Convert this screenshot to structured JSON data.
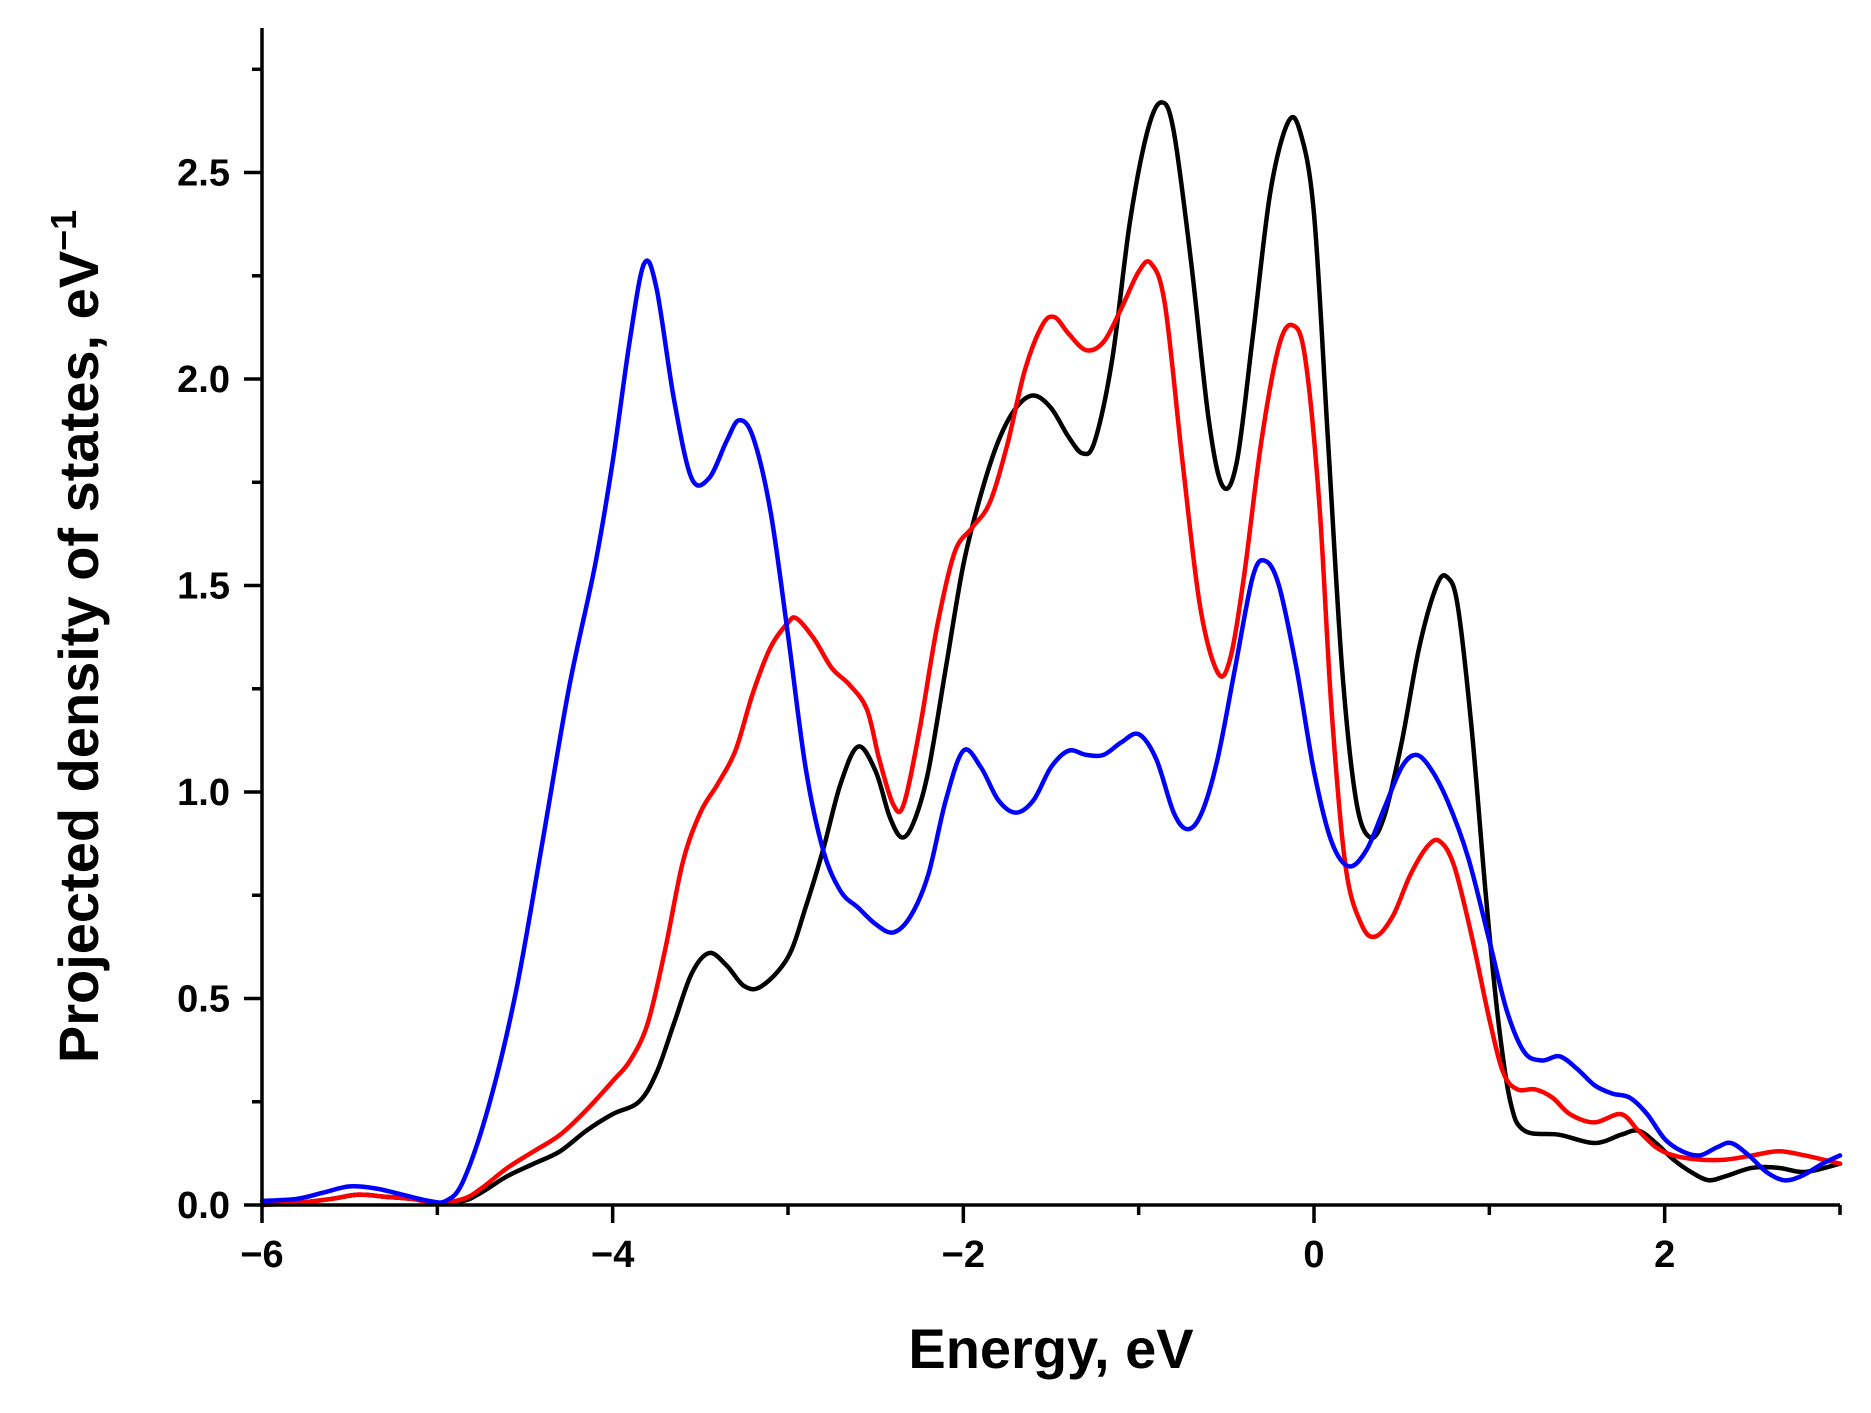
{
  "chart_data": {
    "type": "line",
    "title": "",
    "xlabel": "Energy, eV",
    "ylabel": "Projected density of states, eV",
    "ylabel_unit_exponent": "−1",
    "xlim": [
      -6,
      3
    ],
    "ylim": [
      0,
      2.85
    ],
    "x_ticks": [
      -6,
      -4,
      -2,
      0,
      2
    ],
    "x_tick_labels": [
      "−6",
      "−4",
      "−2",
      "0",
      "2"
    ],
    "y_ticks": [
      0.0,
      0.5,
      1.0,
      1.5,
      2.0,
      2.5
    ],
    "y_tick_labels": [
      "0.0",
      "0.5",
      "1.0",
      "1.5",
      "2.0",
      "2.5"
    ],
    "grid": false,
    "series": [
      {
        "name": "black",
        "color": "#000000",
        "points": [
          [
            -6,
            0
          ],
          [
            -5.8,
            0.005
          ],
          [
            -5.6,
            0.015
          ],
          [
            -5.45,
            0.025
          ],
          [
            -5.3,
            0.02
          ],
          [
            -5.15,
            0.015
          ],
          [
            -5.0,
            0.005
          ],
          [
            -4.85,
            0.01
          ],
          [
            -4.75,
            0.03
          ],
          [
            -4.6,
            0.07
          ],
          [
            -4.45,
            0.1
          ],
          [
            -4.3,
            0.13
          ],
          [
            -4.15,
            0.18
          ],
          [
            -4.0,
            0.22
          ],
          [
            -3.85,
            0.25
          ],
          [
            -3.75,
            0.32
          ],
          [
            -3.65,
            0.44
          ],
          [
            -3.55,
            0.56
          ],
          [
            -3.45,
            0.61
          ],
          [
            -3.35,
            0.58
          ],
          [
            -3.25,
            0.53
          ],
          [
            -3.15,
            0.53
          ],
          [
            -3.0,
            0.6
          ],
          [
            -2.9,
            0.72
          ],
          [
            -2.8,
            0.86
          ],
          [
            -2.7,
            1.02
          ],
          [
            -2.6,
            1.11
          ],
          [
            -2.5,
            1.05
          ],
          [
            -2.42,
            0.94
          ],
          [
            -2.35,
            0.89
          ],
          [
            -2.28,
            0.93
          ],
          [
            -2.2,
            1.05
          ],
          [
            -2.1,
            1.3
          ],
          [
            -2.0,
            1.55
          ],
          [
            -1.9,
            1.72
          ],
          [
            -1.8,
            1.85
          ],
          [
            -1.7,
            1.93
          ],
          [
            -1.6,
            1.96
          ],
          [
            -1.5,
            1.93
          ],
          [
            -1.4,
            1.86
          ],
          [
            -1.32,
            1.82
          ],
          [
            -1.25,
            1.85
          ],
          [
            -1.15,
            2.05
          ],
          [
            -1.05,
            2.38
          ],
          [
            -0.95,
            2.6
          ],
          [
            -0.87,
            2.67
          ],
          [
            -0.8,
            2.6
          ],
          [
            -0.7,
            2.28
          ],
          [
            -0.6,
            1.9
          ],
          [
            -0.52,
            1.74
          ],
          [
            -0.44,
            1.8
          ],
          [
            -0.35,
            2.1
          ],
          [
            -0.25,
            2.45
          ],
          [
            -0.15,
            2.62
          ],
          [
            -0.08,
            2.6
          ],
          [
            0.0,
            2.4
          ],
          [
            0.08,
            1.85
          ],
          [
            0.16,
            1.3
          ],
          [
            0.24,
            0.98
          ],
          [
            0.32,
            0.89
          ],
          [
            0.4,
            0.94
          ],
          [
            0.5,
            1.12
          ],
          [
            0.6,
            1.35
          ],
          [
            0.7,
            1.5
          ],
          [
            0.76,
            1.52
          ],
          [
            0.82,
            1.45
          ],
          [
            0.9,
            1.15
          ],
          [
            0.98,
            0.75
          ],
          [
            1.05,
            0.45
          ],
          [
            1.12,
            0.25
          ],
          [
            1.2,
            0.18
          ],
          [
            1.4,
            0.17
          ],
          [
            1.6,
            0.15
          ],
          [
            1.75,
            0.17
          ],
          [
            1.85,
            0.18
          ],
          [
            1.95,
            0.15
          ],
          [
            2.05,
            0.11
          ],
          [
            2.15,
            0.08
          ],
          [
            2.25,
            0.06
          ],
          [
            2.35,
            0.07
          ],
          [
            2.5,
            0.09
          ],
          [
            2.65,
            0.09
          ],
          [
            2.8,
            0.08
          ],
          [
            3.0,
            0.1
          ]
        ]
      },
      {
        "name": "red",
        "color": "#ff0000",
        "points": [
          [
            -6,
            0
          ],
          [
            -5.8,
            0.005
          ],
          [
            -5.6,
            0.015
          ],
          [
            -5.45,
            0.025
          ],
          [
            -5.3,
            0.02
          ],
          [
            -5.15,
            0.015
          ],
          [
            -5.0,
            0.005
          ],
          [
            -4.85,
            0.015
          ],
          [
            -4.75,
            0.04
          ],
          [
            -4.6,
            0.09
          ],
          [
            -4.45,
            0.13
          ],
          [
            -4.3,
            0.17
          ],
          [
            -4.15,
            0.23
          ],
          [
            -4.0,
            0.3
          ],
          [
            -3.9,
            0.35
          ],
          [
            -3.8,
            0.44
          ],
          [
            -3.7,
            0.62
          ],
          [
            -3.6,
            0.83
          ],
          [
            -3.5,
            0.95
          ],
          [
            -3.4,
            1.02
          ],
          [
            -3.3,
            1.1
          ],
          [
            -3.2,
            1.24
          ],
          [
            -3.1,
            1.35
          ],
          [
            -3.0,
            1.41
          ],
          [
            -2.95,
            1.42
          ],
          [
            -2.85,
            1.37
          ],
          [
            -2.75,
            1.3
          ],
          [
            -2.65,
            1.26
          ],
          [
            -2.55,
            1.2
          ],
          [
            -2.48,
            1.08
          ],
          [
            -2.4,
            0.97
          ],
          [
            -2.34,
            0.97
          ],
          [
            -2.25,
            1.15
          ],
          [
            -2.15,
            1.4
          ],
          [
            -2.05,
            1.58
          ],
          [
            -1.95,
            1.64
          ],
          [
            -1.85,
            1.7
          ],
          [
            -1.75,
            1.84
          ],
          [
            -1.65,
            2.02
          ],
          [
            -1.55,
            2.13
          ],
          [
            -1.48,
            2.15
          ],
          [
            -1.4,
            2.11
          ],
          [
            -1.3,
            2.07
          ],
          [
            -1.2,
            2.09
          ],
          [
            -1.1,
            2.17
          ],
          [
            -1.0,
            2.26
          ],
          [
            -0.93,
            2.28
          ],
          [
            -0.85,
            2.18
          ],
          [
            -0.75,
            1.8
          ],
          [
            -0.65,
            1.45
          ],
          [
            -0.55,
            1.29
          ],
          [
            -0.48,
            1.32
          ],
          [
            -0.4,
            1.52
          ],
          [
            -0.3,
            1.85
          ],
          [
            -0.2,
            2.08
          ],
          [
            -0.12,
            2.13
          ],
          [
            -0.05,
            2.05
          ],
          [
            0.03,
            1.7
          ],
          [
            0.1,
            1.2
          ],
          [
            0.18,
            0.82
          ],
          [
            0.27,
            0.68
          ],
          [
            0.35,
            0.65
          ],
          [
            0.45,
            0.7
          ],
          [
            0.55,
            0.8
          ],
          [
            0.65,
            0.87
          ],
          [
            0.72,
            0.88
          ],
          [
            0.8,
            0.82
          ],
          [
            0.9,
            0.65
          ],
          [
            1.0,
            0.45
          ],
          [
            1.08,
            0.32
          ],
          [
            1.16,
            0.28
          ],
          [
            1.26,
            0.28
          ],
          [
            1.36,
            0.26
          ],
          [
            1.46,
            0.22
          ],
          [
            1.6,
            0.2
          ],
          [
            1.75,
            0.22
          ],
          [
            1.85,
            0.18
          ],
          [
            1.95,
            0.14
          ],
          [
            2.05,
            0.12
          ],
          [
            2.2,
            0.11
          ],
          [
            2.35,
            0.11
          ],
          [
            2.5,
            0.12
          ],
          [
            2.65,
            0.13
          ],
          [
            2.8,
            0.12
          ],
          [
            3.0,
            0.1
          ]
        ]
      },
      {
        "name": "blue",
        "color": "#0000ff",
        "points": [
          [
            -6,
            0.01
          ],
          [
            -5.8,
            0.015
          ],
          [
            -5.65,
            0.03
          ],
          [
            -5.5,
            0.045
          ],
          [
            -5.35,
            0.04
          ],
          [
            -5.2,
            0.025
          ],
          [
            -5.05,
            0.01
          ],
          [
            -4.95,
            0.01
          ],
          [
            -4.85,
            0.06
          ],
          [
            -4.7,
            0.25
          ],
          [
            -4.55,
            0.52
          ],
          [
            -4.4,
            0.88
          ],
          [
            -4.25,
            1.25
          ],
          [
            -4.1,
            1.55
          ],
          [
            -4.0,
            1.8
          ],
          [
            -3.9,
            2.1
          ],
          [
            -3.82,
            2.28
          ],
          [
            -3.75,
            2.22
          ],
          [
            -3.65,
            1.95
          ],
          [
            -3.55,
            1.76
          ],
          [
            -3.45,
            1.76
          ],
          [
            -3.35,
            1.85
          ],
          [
            -3.28,
            1.9
          ],
          [
            -3.2,
            1.86
          ],
          [
            -3.1,
            1.68
          ],
          [
            -3.0,
            1.38
          ],
          [
            -2.9,
            1.06
          ],
          [
            -2.8,
            0.86
          ],
          [
            -2.7,
            0.76
          ],
          [
            -2.6,
            0.72
          ],
          [
            -2.5,
            0.68
          ],
          [
            -2.4,
            0.66
          ],
          [
            -2.3,
            0.7
          ],
          [
            -2.2,
            0.8
          ],
          [
            -2.1,
            0.98
          ],
          [
            -2.0,
            1.1
          ],
          [
            -1.9,
            1.06
          ],
          [
            -1.8,
            0.98
          ],
          [
            -1.7,
            0.95
          ],
          [
            -1.6,
            0.98
          ],
          [
            -1.5,
            1.06
          ],
          [
            -1.4,
            1.1
          ],
          [
            -1.3,
            1.09
          ],
          [
            -1.2,
            1.09
          ],
          [
            -1.1,
            1.12
          ],
          [
            -1.0,
            1.14
          ],
          [
            -0.9,
            1.08
          ],
          [
            -0.8,
            0.95
          ],
          [
            -0.72,
            0.91
          ],
          [
            -0.64,
            0.95
          ],
          [
            -0.55,
            1.08
          ],
          [
            -0.45,
            1.3
          ],
          [
            -0.35,
            1.52
          ],
          [
            -0.28,
            1.56
          ],
          [
            -0.2,
            1.5
          ],
          [
            -0.1,
            1.3
          ],
          [
            0.0,
            1.05
          ],
          [
            0.1,
            0.88
          ],
          [
            0.2,
            0.82
          ],
          [
            0.3,
            0.86
          ],
          [
            0.4,
            0.96
          ],
          [
            0.5,
            1.06
          ],
          [
            0.58,
            1.09
          ],
          [
            0.66,
            1.06
          ],
          [
            0.76,
            0.98
          ],
          [
            0.88,
            0.84
          ],
          [
            1.0,
            0.64
          ],
          [
            1.1,
            0.47
          ],
          [
            1.2,
            0.37
          ],
          [
            1.3,
            0.35
          ],
          [
            1.4,
            0.36
          ],
          [
            1.5,
            0.33
          ],
          [
            1.6,
            0.29
          ],
          [
            1.7,
            0.27
          ],
          [
            1.8,
            0.26
          ],
          [
            1.9,
            0.22
          ],
          [
            2.0,
            0.16
          ],
          [
            2.1,
            0.13
          ],
          [
            2.2,
            0.12
          ],
          [
            2.3,
            0.14
          ],
          [
            2.38,
            0.15
          ],
          [
            2.48,
            0.12
          ],
          [
            2.58,
            0.08
          ],
          [
            2.68,
            0.06
          ],
          [
            2.78,
            0.07
          ],
          [
            2.9,
            0.1
          ],
          [
            3.0,
            0.12
          ]
        ]
      }
    ]
  }
}
